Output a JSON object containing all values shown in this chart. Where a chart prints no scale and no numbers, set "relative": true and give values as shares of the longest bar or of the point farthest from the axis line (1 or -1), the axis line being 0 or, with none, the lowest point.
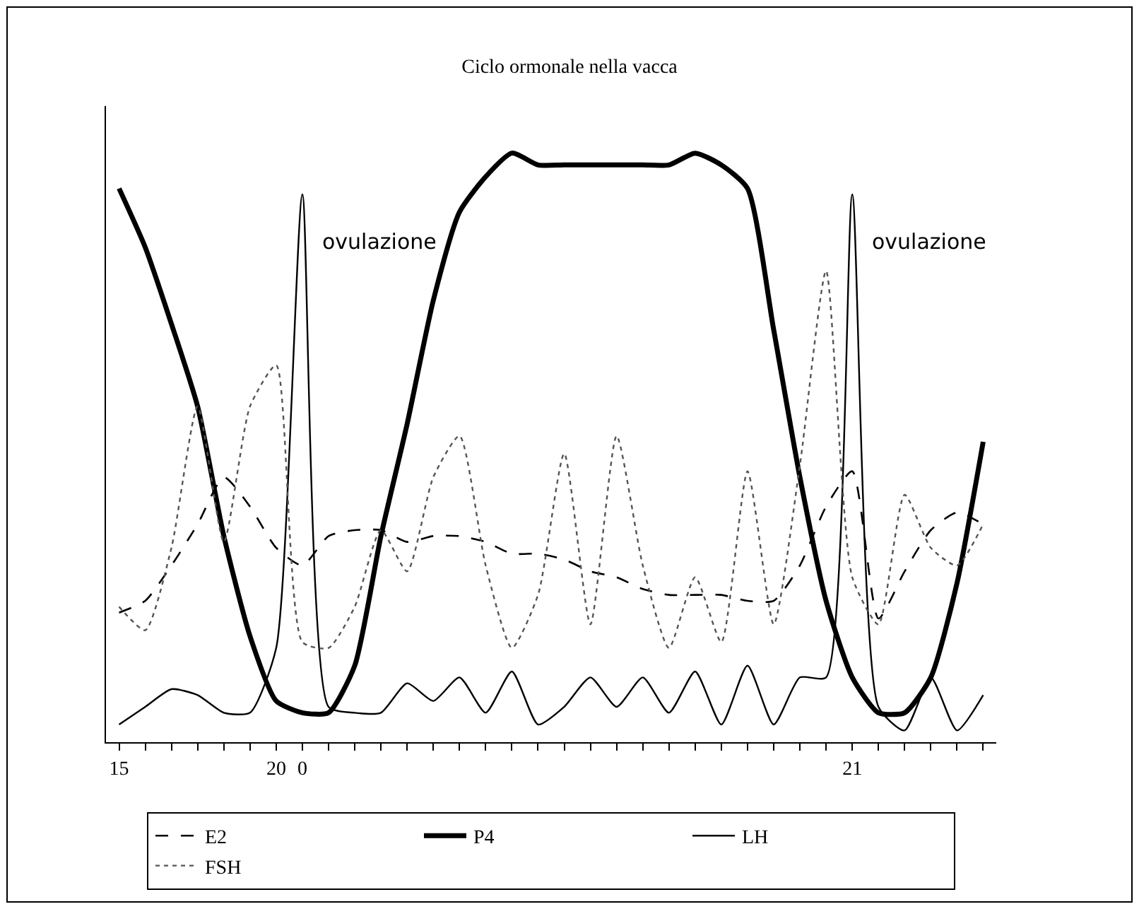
{
  "chart_data": {
    "type": "line",
    "title": "Ciclo ormonale nella vacca",
    "relative": true,
    "categories": [
      "15",
      null,
      null,
      null,
      null,
      null,
      "20",
      "0",
      null,
      null,
      null,
      null,
      null,
      null,
      null,
      null,
      null,
      null,
      null,
      null,
      null,
      null,
      null,
      null,
      null,
      null,
      null,
      null,
      "21",
      null,
      null,
      null,
      null,
      null
    ],
    "series": [
      {
        "name": "E2",
        "color": "#000000",
        "line_style": "dashed",
        "values": [
          0.22,
          0.24,
          0.3,
          0.37,
          0.45,
          0.4,
          0.33,
          0.3,
          0.35,
          0.36,
          0.36,
          0.34,
          0.35,
          0.35,
          0.34,
          0.32,
          0.32,
          0.31,
          0.29,
          0.28,
          0.26,
          0.25,
          0.25,
          0.25,
          0.24,
          0.24,
          0.3,
          0.4,
          0.46,
          0.21,
          0.29,
          0.36,
          0.39,
          0.37
        ]
      },
      {
        "name": "P4",
        "color": "#000000",
        "line_style": "solid",
        "values": [
          0.94,
          0.84,
          0.71,
          0.57,
          0.35,
          0.18,
          0.07,
          0.05,
          0.05,
          0.13,
          0.35,
          0.54,
          0.75,
          0.9,
          0.96,
          1.0,
          0.98,
          0.98,
          0.98,
          0.98,
          0.98,
          0.98,
          1.0,
          0.98,
          0.94,
          0.7,
          0.45,
          0.24,
          0.11,
          0.05,
          0.05,
          0.11,
          0.27,
          0.51
        ]
      },
      {
        "name": "LH",
        "color": "#000000",
        "line_style": "solid",
        "values": [
          0.03,
          0.06,
          0.09,
          0.08,
          0.05,
          0.05,
          0.16,
          0.93,
          0.06,
          0.05,
          0.05,
          0.1,
          0.07,
          0.11,
          0.05,
          0.12,
          0.03,
          0.06,
          0.11,
          0.06,
          0.11,
          0.05,
          0.12,
          0.03,
          0.13,
          0.03,
          0.11,
          0.11,
          0.93,
          0.06,
          0.02,
          0.11,
          0.02,
          0.08
        ]
      },
      {
        "name": "FSH",
        "color": "#555555",
        "line_style": "dotted",
        "values": [
          0.23,
          0.19,
          0.33,
          0.57,
          0.34,
          0.57,
          0.64,
          0.17,
          0.16,
          0.23,
          0.36,
          0.29,
          0.45,
          0.52,
          0.3,
          0.16,
          0.25,
          0.49,
          0.2,
          0.52,
          0.3,
          0.16,
          0.28,
          0.17,
          0.46,
          0.2,
          0.47,
          0.8,
          0.28,
          0.2,
          0.42,
          0.33,
          0.3,
          0.37
        ]
      }
    ],
    "annotations": [
      {
        "text": "ovulazione",
        "x": "0",
        "y": 0.85
      },
      {
        "text": "ovulazione",
        "x": "21",
        "y": 0.85
      }
    ],
    "legend": "bottom",
    "marker": "none"
  }
}
